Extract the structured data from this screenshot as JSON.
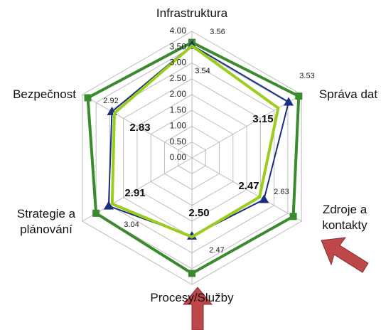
{
  "chart_data": {
    "type": "radar",
    "categories": [
      "Infrastruktura",
      "Správa dat",
      "Zdroje a kontakty",
      "Procesy/Služby",
      "Strategie a plánování",
      "Bezpečnost"
    ],
    "series": [
      {
        "color": "#3a8a2e",
        "marker": "square",
        "values": [
          3.65,
          3.9,
          3.7,
          3.65,
          3.5,
          3.8
        ]
      },
      {
        "color": "#1a2f80",
        "marker": "triangle",
        "values": [
          3.56,
          3.53,
          2.63,
          2.47,
          3.04,
          2.92
        ],
        "value_labels": [
          "3.56",
          "3.53",
          "2.63",
          "2.47",
          "3.04",
          "2.92"
        ]
      },
      {
        "color": "#9acd1e",
        "marker": "none",
        "values": [
          3.54,
          3.15,
          2.47,
          2.5,
          2.91,
          2.83
        ],
        "value_labels": [
          "3.54",
          "3.15",
          "2.47",
          "2.50",
          "2.91",
          "2.83"
        ]
      }
    ],
    "ylim": [
      0,
      4
    ],
    "yticks": [
      {
        "value": 0,
        "label": "0.00"
      },
      {
        "value": 0.5,
        "label": "0.50"
      },
      {
        "value": 1,
        "label": "1.00"
      },
      {
        "value": 1.5,
        "label": "1.50"
      },
      {
        "value": 2,
        "label": "2.00"
      },
      {
        "value": 2.5,
        "label": "2.50"
      },
      {
        "value": 3,
        "label": "3.00"
      },
      {
        "value": 3.5,
        "label": "3.50"
      },
      {
        "value": 4,
        "label": "4.00"
      }
    ],
    "grid": true
  }
}
